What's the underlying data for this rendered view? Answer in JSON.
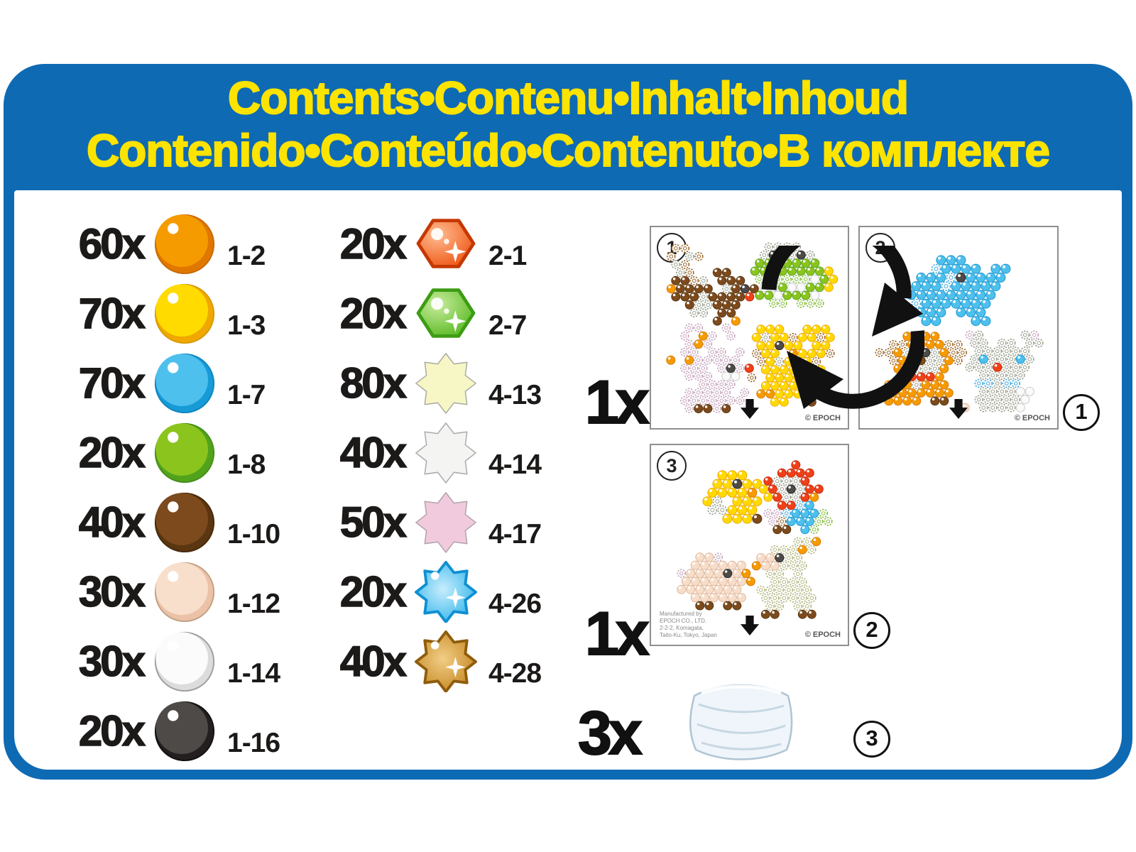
{
  "header": {
    "line1": "Contents•Contenu•Inhalt•Inhoud",
    "line2": "Contenido•Conteúdo•Contenuto•В комплекте"
  },
  "colors": {
    "frame_blue": "#0F6AB4",
    "header_yellow": "#FCE300",
    "text_black": "#1C1A19"
  },
  "standard_beads": [
    {
      "count": "60x",
      "code": "1-2",
      "name": "orange-bead",
      "fill": "#F59B00",
      "shade": "#E07800",
      "outline": "#C96A00"
    },
    {
      "count": "70x",
      "code": "1-3",
      "name": "yellow-bead",
      "fill": "#FFDB00",
      "shade": "#F0A800",
      "outline": "#D89A00"
    },
    {
      "count": "70x",
      "code": "1-7",
      "name": "blue-bead",
      "fill": "#4EC0EE",
      "shade": "#169BD6",
      "outline": "#0E86BE"
    },
    {
      "count": "20x",
      "code": "1-8",
      "name": "green-bead",
      "fill": "#8CC41E",
      "shade": "#52A31C",
      "outline": "#458E18"
    },
    {
      "count": "40x",
      "code": "1-10",
      "name": "brown-bead",
      "fill": "#7C4A1C",
      "shade": "#5A3611",
      "outline": "#46290C"
    },
    {
      "count": "30x",
      "code": "1-12",
      "name": "peach-bead",
      "fill": "#F8DFCB",
      "shade": "#EBC2A8",
      "outline": "#C2A083"
    },
    {
      "count": "30x",
      "code": "1-14",
      "name": "white-bead",
      "fill": "#FBFBFB",
      "shade": "#DCDCDC",
      "outline": "#9E9E9E"
    },
    {
      "count": "20x",
      "code": "1-16",
      "name": "black-bead",
      "fill": "#4E4A47",
      "shade": "#221F1E",
      "outline": "#111111"
    }
  ],
  "special_beads": [
    {
      "count": "20x",
      "code": "2-1",
      "icon": "hex",
      "name": "orange-jewel-hexagon",
      "fill": "#EE5311",
      "light": "#FFBD92",
      "stroke": "#C53800"
    },
    {
      "count": "20x",
      "code": "2-7",
      "icon": "hex",
      "name": "green-jewel-hexagon",
      "fill": "#56B81E",
      "light": "#C9EC9E",
      "stroke": "#3D9C14"
    },
    {
      "count": "80x",
      "code": "4-13",
      "icon": "star",
      "name": "cream-star-bead",
      "fill": "#F7F7C6",
      "stroke": "#ABABA3"
    },
    {
      "count": "40x",
      "code": "4-14",
      "icon": "star",
      "name": "white-star-bead",
      "fill": "#F4F4F2",
      "stroke": "#ABABAB"
    },
    {
      "count": "50x",
      "code": "4-17",
      "icon": "star",
      "name": "pink-star-bead",
      "fill": "#F1CBDD",
      "stroke": "#B5A2AC"
    },
    {
      "count": "20x",
      "code": "4-26",
      "icon": "jewelstar",
      "name": "blue-jewel-star",
      "fill": "#21AEE9",
      "light": "#C8EEFC",
      "stroke": "#0F8FD2"
    },
    {
      "count": "40x",
      "code": "4-28",
      "icon": "jewelstar",
      "name": "gold-jewel-star",
      "fill": "#BE7D14",
      "light": "#F2CE86",
      "stroke": "#8F5C0C"
    }
  ],
  "bead_palette": {
    "O": {
      "style": "solid",
      "fill": "#F59B00",
      "shade": "#D97700"
    },
    "Y": {
      "style": "solid",
      "fill": "#FFD900",
      "shade": "#EFA900"
    },
    "B": {
      "style": "solid",
      "fill": "#4FC0EC",
      "shade": "#1897D2"
    },
    "G": {
      "style": "solid",
      "fill": "#8CC41E",
      "shade": "#55A21C"
    },
    "N": {
      "style": "solid",
      "fill": "#7C4A1C",
      "shade": "#5A3611"
    },
    "P": {
      "style": "solid",
      "fill": "#F7DECA",
      "shade": "#E0B79B"
    },
    "W": {
      "style": "solid",
      "fill": "#FAFAFA",
      "shade": "#C9C9C9"
    },
    "K": {
      "style": "solid",
      "fill": "#4E4A47",
      "shade": "#232120"
    },
    "R": {
      "style": "solid",
      "fill": "#F04018",
      "shade": "#C22A08"
    },
    "n": {
      "style": "flower",
      "stroke": "#9A6628"
    },
    "w": {
      "style": "flower",
      "stroke": "#9AA08E"
    },
    "p": {
      "style": "flower",
      "stroke": "#C5A3BC"
    },
    "g": {
      "style": "flower",
      "stroke": "#86BD3E"
    },
    "b": {
      "style": "flower",
      "stroke": "#3FA8DC"
    },
    "c": {
      "style": "flower",
      "stroke": "#B4B780"
    }
  },
  "sheets": [
    {
      "label": "1",
      "copyright": "© EPOCH",
      "patterns": [
        {
          "name": "squirrel",
          "art": [
            ".nn.......",
            "n.wn......",
            ".wn.......",
            ".wn..NN...",
            ".NNnw.NNN.",
            "ONNNN.wNKN",
            ".NNNwNNNNR",
            "..NwwNNN..",
            "...ww.NN..",
            ".....N.O.."
          ]
        },
        {
          "name": "frog",
          "art": [
            "..wwww....",
            ".wKwwKw...",
            ".GGGGGGG..",
            "GGGGGGGGY.",
            ".ggggggWGY",
            ".WWGWWGGY.",
            ".GGWGGGW..",
            "..gg.ggg.."
          ]
        },
        {
          "name": "rabbit",
          "art": [
            "..pp..p...",
            ".p.Op.p...",
            "..pOp.....",
            ".pp.pp.p..",
            "O.Oppppp..",
            ".ppp.pKpR.",
            "..ppp.WW..",
            "...pppp...",
            "..ppppp.p.",
            ".ppppppp..",
            "..pNNpN..."
          ]
        },
        {
          "name": "lion",
          "art": [
            ".YYY..YYY.",
            "YwYYnYYnY.",
            ".YYKYY.YY.",
            "nYY.OYYYn.",
            ".nYwYYYn..",
            ".YYYYYYY..",
            "n.YYYYYn..",
            ".YYYYYYY..",
            ".OOYYYOO..",
            "..YY..N..."
          ]
        }
      ]
    },
    {
      "label": "2",
      "copyright": "© EPOCH",
      "patterns": [
        {
          "name": "elephant",
          "art": [
            "....BBB....",
            "...bBBBB.BB",
            "..BBBbKBBBB",
            ".BBBbBBBBB.",
            "bBBBBBBBBB.",
            ".bBBBBBBB..",
            "..BBB.BBB..",
            "..BB...BB.."
          ]
        },
        {
          "name": "dog",
          "art": [
            "...OOOO...",
            ".nnOOOOnn.",
            "nnOwwKwOnn",
            ".nOwNwwOn.",
            "..OwwwwO..",
            "..ORRRO...",
            ".OOOwOOO..",
            "OOOOOOOO..",
            ".OOOO.NN.."
          ]
        },
        {
          "name": "cat",
          "art": [
            ".pw....wp.",
            ".ww.ww.ww.",
            "..wwwwww..",
            ".wBwwwBw..",
            ".wwwRwww..",
            "..wwwww...",
            "..bbwbb...",
            "..wwwwWW..",
            "..wwwwwW..",
            "P.wwwwW..."
          ]
        }
      ]
    },
    {
      "label": "3",
      "copyright": "© EPOCH",
      "manufacturer_lines": [
        "Manufactured by",
        "EPOCH CO., LTD.",
        "2-2-2, Komagata,",
        "Taito-Ku, Tokyo, Japan"
      ],
      "patterns": [
        {
          "name": "duck",
          "art": [
            "..YYY...",
            ".YYKYY..",
            ".YYYYO..",
            "Yw.YYY..",
            ".wwYYY..",
            "..YYYN.."
          ]
        },
        {
          "name": "parrot",
          "art": [
            "....R....",
            "..RRRR...",
            ".RwwwR...",
            "YRwKwRR..",
            ".YRwwRO..",
            "..RRbB...",
            ".ppbBBBg.",
            ".pnBBBgg.",
            "..NN.Bg.."
          ]
        },
        {
          "name": "pig",
          "art": [
            "...PPp....",
            "..PPPPPP..",
            ".pPPPPKPO.",
            ".PPPPPPPO.",
            ".PPPPPPP..",
            "..PPPPPP..",
            "...NN.NN.."
          ]
        },
        {
          "name": "goat",
          "art": [
            ".....ccO..",
            "..cccOc...",
            ".PPKcc....",
            "OPPccc....",
            "..cc.c....",
            "..cccc....",
            ".cccccc...",
            ".cccccc...",
            "..cc.cc...",
            ".NN..NN..."
          ]
        }
      ]
    }
  ],
  "right_items": [
    {
      "qty": "1x",
      "marker": "1"
    },
    {
      "qty": "1x",
      "marker": "2"
    },
    {
      "qty": "3x",
      "marker": "3"
    }
  ]
}
